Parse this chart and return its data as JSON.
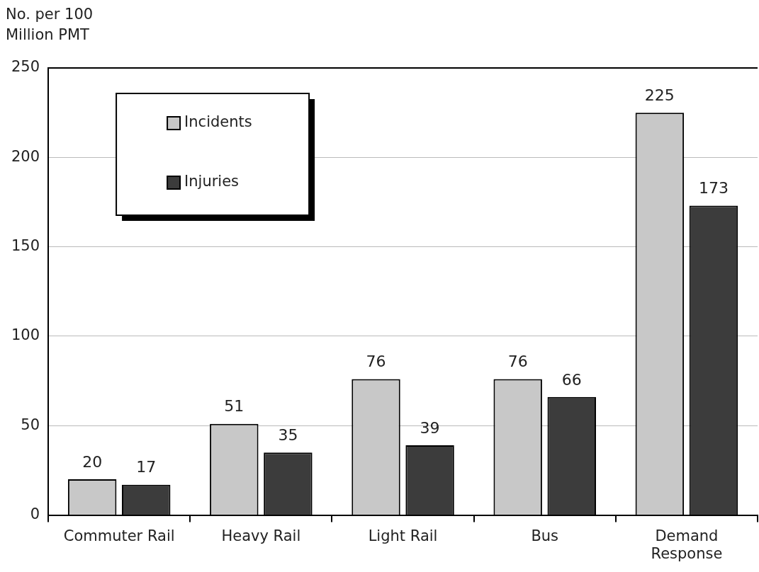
{
  "chart_data": {
    "type": "bar",
    "ylabel": "No. per 100 Million PMT",
    "categories": [
      "Commuter Rail",
      "Heavy Rail",
      "Light Rail",
      "Bus",
      "Demand Response"
    ],
    "series": [
      {
        "name": "Incidents",
        "color": "#c8c8c8",
        "values": [
          20,
          51,
          76,
          76,
          225
        ]
      },
      {
        "name": "Injuries",
        "color": "#3c3c3c",
        "values": [
          17,
          35,
          39,
          66,
          173
        ]
      }
    ],
    "ylim": [
      0,
      250
    ],
    "yticks": [
      0,
      50,
      100,
      150,
      200,
      250
    ],
    "grid": "y",
    "legend": "top left",
    "data_labels": true
  }
}
